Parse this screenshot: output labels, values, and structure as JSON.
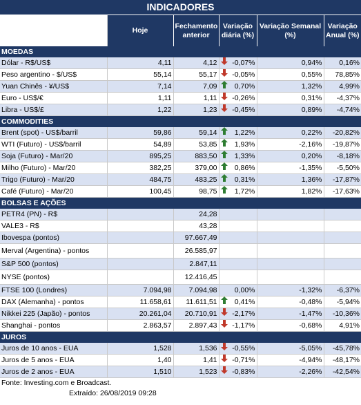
{
  "title": "INDICADORES",
  "headers": {
    "hoje": "Hoje",
    "fechamento": "Fechamento anterior",
    "var_diaria": "Variação diária (%)",
    "var_semanal": "Variação Semanal (%)",
    "var_anual": "Variação Anual (%)"
  },
  "colors": {
    "header_bg": "#1f3864",
    "alt_row": "#d9e1f2",
    "up_arrow": "#2e7d32",
    "down_arrow": "#c0392b"
  },
  "sections": [
    {
      "name": "MOEDAS",
      "rows": [
        {
          "name": "Dólar - R$/US$",
          "hoje": "4,11",
          "fech": "4,12",
          "dir": "down",
          "dia": "-0,07%",
          "sem": "0,94%",
          "ano": "0,16%"
        },
        {
          "name": "Peso argentino - $/US$",
          "hoje": "55,14",
          "fech": "55,17",
          "dir": "down",
          "dia": "-0,05%",
          "sem": "0,55%",
          "ano": "78,85%"
        },
        {
          "name": "Yuan Chinês - ¥/US$",
          "hoje": "7,14",
          "fech": "7,09",
          "dir": "up",
          "dia": "0,70%",
          "sem": "1,32%",
          "ano": "4,99%"
        },
        {
          "name": "Euro - US$/€",
          "hoje": "1,11",
          "fech": "1,11",
          "dir": "down",
          "dia": "-0,26%",
          "sem": "0,31%",
          "ano": "-4,37%"
        },
        {
          "name": "Libra - US$/£",
          "hoje": "1,22",
          "fech": "1,23",
          "dir": "down",
          "dia": "-0,45%",
          "sem": "0,89%",
          "ano": "-4,74%"
        }
      ]
    },
    {
      "name": "COMMODITIES",
      "rows": [
        {
          "name": "Brent (spot) - US$/barril",
          "hoje": "59,86",
          "fech": "59,14",
          "dir": "up",
          "dia": "1,22%",
          "sem": "0,22%",
          "ano": "-20,82%"
        },
        {
          "name": "WTI (Futuro) - US$/barril",
          "hoje": "54,89",
          "fech": "53,85",
          "dir": "up",
          "dia": "1,93%",
          "sem": "-2,16%",
          "ano": "-19,87%"
        },
        {
          "name": "Soja (Futuro) - Mar/20",
          "hoje": "895,25",
          "fech": "883,50",
          "dir": "up",
          "dia": "1,33%",
          "sem": "0,20%",
          "ano": "-8,18%"
        },
        {
          "name": "Milho (Futuro) - Mar/20",
          "hoje": "382,25",
          "fech": "379,00",
          "dir": "up",
          "dia": "0,86%",
          "sem": "-1,35%",
          "ano": "-5,50%"
        },
        {
          "name": "Trigo (Futuro) - Mar/20",
          "hoje": "484,75",
          "fech": "483,25",
          "dir": "up",
          "dia": "0,31%",
          "sem": "1,36%",
          "ano": "-17,87%"
        },
        {
          "name": "Café (Futuro) - Mar/20",
          "hoje": "100,45",
          "fech": "98,75",
          "dir": "up",
          "dia": "1,72%",
          "sem": "1,82%",
          "ano": "-17,63%"
        }
      ]
    },
    {
      "name": "BOLSAS E AÇÕES",
      "rows": [
        {
          "name": "PETR4 (PN) - R$",
          "hoje": "",
          "fech": "24,28",
          "dir": "",
          "dia": "",
          "sem": "",
          "ano": ""
        },
        {
          "name": "VALE3 - R$",
          "hoje": "",
          "fech": "43,28",
          "dir": "",
          "dia": "",
          "sem": "",
          "ano": ""
        },
        {
          "name": "Ibovespa (pontos)",
          "hoje": "",
          "fech": "97.667,49",
          "dir": "",
          "dia": "",
          "sem": "",
          "ano": ""
        },
        {
          "name": "Merval (Argentina) - pontos",
          "hoje": "",
          "fech": "26.585,97",
          "dir": "",
          "dia": "",
          "sem": "",
          "ano": "",
          "tall": true
        },
        {
          "name": "S&P 500 (pontos)",
          "hoje": "",
          "fech": "2.847,11",
          "dir": "",
          "dia": "",
          "sem": "",
          "ano": ""
        },
        {
          "name": "NYSE (pontos)",
          "hoje": "",
          "fech": "12.416,45",
          "dir": "",
          "dia": "",
          "sem": "",
          "ano": "",
          "tall": true
        },
        {
          "name": "FTSE 100 (Londres)",
          "hoje": "7.094,98",
          "fech": "7.094,98",
          "dir": "",
          "dia": "0,00%",
          "sem": "-1,32%",
          "ano": "-6,37%"
        },
        {
          "name": "DAX (Alemanha) - pontos",
          "hoje": "11.658,61",
          "fech": "11.611,51",
          "dir": "up",
          "dia": "0,41%",
          "sem": "-0,48%",
          "ano": "-5,94%"
        },
        {
          "name": "Nikkei 225 (Japão) - pontos",
          "hoje": "20.261,04",
          "fech": "20.710,91",
          "dir": "down",
          "dia": "-2,17%",
          "sem": "-1,47%",
          "ano": "-10,36%"
        },
        {
          "name": "Shanghai - pontos",
          "hoje": "2.863,57",
          "fech": "2.897,43",
          "dir": "down",
          "dia": "-1,17%",
          "sem": "-0,68%",
          "ano": "4,91%"
        }
      ]
    },
    {
      "name": "JUROS",
      "rows": [
        {
          "name": "Juros de 10 anos - EUA",
          "hoje": "1,528",
          "fech": "1,536",
          "dir": "down",
          "dia": "-0,55%",
          "sem": "-5,05%",
          "ano": "-45,78%"
        },
        {
          "name": "Juros de 5 anos - EUA",
          "hoje": "1,40",
          "fech": "1,41",
          "dir": "down",
          "dia": "-0,71%",
          "sem": "-4,94%",
          "ano": "-48,17%"
        },
        {
          "name": "Juros de 2 anos - EUA",
          "hoje": "1,510",
          "fech": "1,523",
          "dir": "down",
          "dia": "-0,83%",
          "sem": "-2,26%",
          "ano": "-42,54%"
        }
      ]
    }
  ],
  "footer": {
    "source": "Fonte: Investing.com e Broadcast.",
    "extracted": "Extraído:   26/08/2019 09:28"
  }
}
